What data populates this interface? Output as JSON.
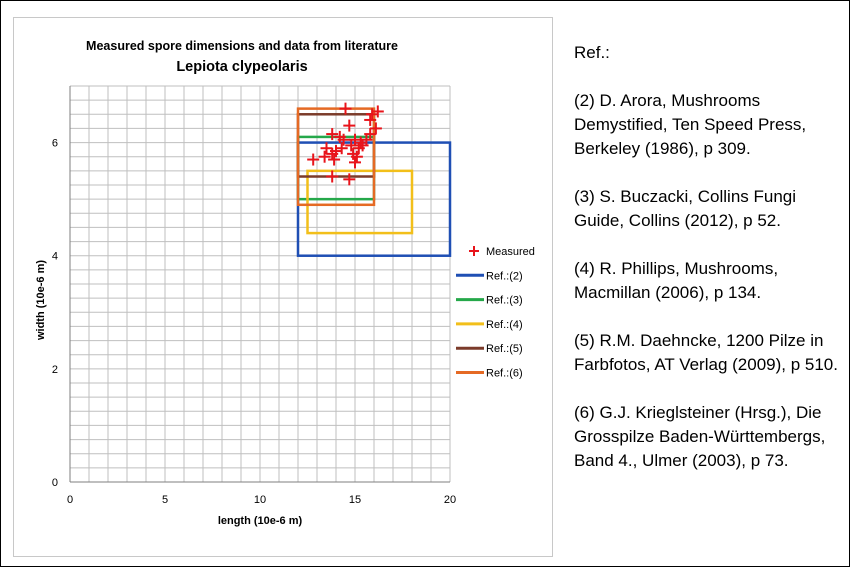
{
  "chart_data": {
    "type": "scatter",
    "title": "Measured spore dimensions and data from literature",
    "subtitle": "Lepiota clypeolaris",
    "xlabel": "length (10e-6 m)",
    "ylabel": "width (10e-6 m)",
    "xlim": [
      0,
      20
    ],
    "ylim": [
      0,
      7
    ],
    "x_ticks": [
      0,
      5,
      10,
      15,
      20
    ],
    "y_ticks": [
      0,
      2,
      4,
      6
    ],
    "x_minor_step": 1,
    "y_minor_step": 0.25,
    "grid": true,
    "legend_position": "right",
    "measured": {
      "name": "Measured",
      "color": "#e8141b",
      "points": [
        [
          14.5,
          6.6
        ],
        [
          15.9,
          6.5
        ],
        [
          16.2,
          6.55
        ],
        [
          15.8,
          6.4
        ],
        [
          16.1,
          6.25
        ],
        [
          14.7,
          6.3
        ],
        [
          15.8,
          6.15
        ],
        [
          14.2,
          6.1
        ],
        [
          13.8,
          6.15
        ],
        [
          14.4,
          6.05
        ],
        [
          15.0,
          6.05
        ],
        [
          15.3,
          6.0
        ],
        [
          14.8,
          5.95
        ],
        [
          15.2,
          5.9
        ],
        [
          15.4,
          5.95
        ],
        [
          13.5,
          5.9
        ],
        [
          14.0,
          5.85
        ],
        [
          14.9,
          5.8
        ],
        [
          15.1,
          5.75
        ],
        [
          13.8,
          5.8
        ],
        [
          13.4,
          5.75
        ],
        [
          12.8,
          5.7
        ],
        [
          13.9,
          5.7
        ],
        [
          15.0,
          5.65
        ],
        [
          13.8,
          5.4
        ],
        [
          14.7,
          5.35
        ],
        [
          14.3,
          5.9
        ],
        [
          15.6,
          6.05
        ]
      ]
    },
    "series": [
      {
        "name": "Ref.:(2)",
        "color": "#1f4fb4",
        "x_range": [
          12,
          20
        ],
        "y_range": [
          4,
          6
        ]
      },
      {
        "name": "Ref.:(3)",
        "color": "#25a84a",
        "x_range": [
          12,
          16
        ],
        "y_range": [
          5,
          6.1
        ]
      },
      {
        "name": "Ref.:(4)",
        "color": "#f2bf1a",
        "x_range": [
          12.5,
          18
        ],
        "y_range": [
          4.4,
          5.5
        ]
      },
      {
        "name": "Ref.:(5)",
        "color": "#7b3b2a",
        "x_range": [
          12,
          16
        ],
        "y_range": [
          5.4,
          6.5
        ]
      },
      {
        "name": "Ref.:(6)",
        "color": "#e56a24",
        "x_range": [
          12,
          16
        ],
        "y_range": [
          4.9,
          6.6
        ]
      }
    ]
  },
  "references": {
    "heading": "Ref.:",
    "items": [
      "(2) D. Arora, Mushrooms Demystified, Ten Speed Press, Berkeley (1986), p 309.",
      "(3) S. Buczacki, Collins Fungi Guide, Collins (2012), p 52.",
      "(4) R. Phillips, Mushrooms, Macmillan (2006), p 134.",
      "(5) R.M. Daehncke, 1200 Pilze in Farbfotos, AT Verlag (2009), p 510.",
      "(6) G.J. Krieglsteiner (Hrsg.), Die Grosspilze Baden-Württembergs, Band 4., Ulmer (2003), p 73."
    ]
  }
}
